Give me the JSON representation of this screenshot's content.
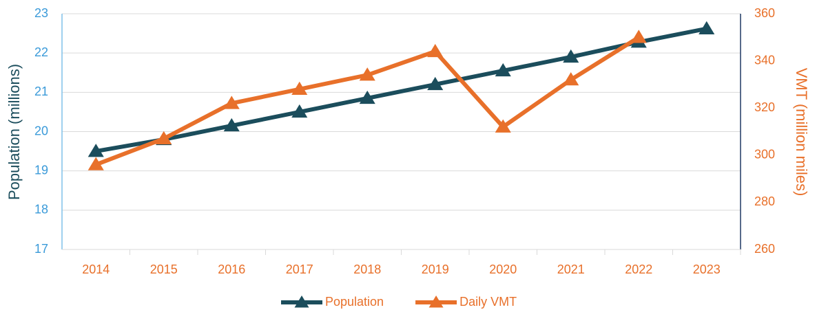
{
  "chart_data": {
    "type": "line",
    "categories": [
      "2014",
      "2015",
      "2016",
      "2017",
      "2018",
      "2019",
      "2020",
      "2021",
      "2022",
      "2023"
    ],
    "series": [
      {
        "name": "Population",
        "color": "#1b4d5c",
        "values": [
          19.5,
          19.8,
          20.15,
          20.5,
          20.85,
          21.2,
          21.55,
          21.9,
          22.28,
          22.62
        ]
      },
      {
        "name": "Daily VMT",
        "color": "#e8702a",
        "axis": "y2",
        "values": [
          296,
          307,
          322,
          328,
          334,
          344,
          312,
          332,
          350,
          null
        ]
      }
    ],
    "ylabel": "Population (millions)",
    "y2label": "VMT (million miles)",
    "ylim": [
      17,
      23
    ],
    "yticks": [
      17,
      18,
      19,
      20,
      21,
      22,
      23
    ],
    "y2lim": [
      260,
      360
    ],
    "y2ticks": [
      260,
      280,
      300,
      320,
      340,
      360
    ],
    "grid": true,
    "legend": "bottom"
  }
}
